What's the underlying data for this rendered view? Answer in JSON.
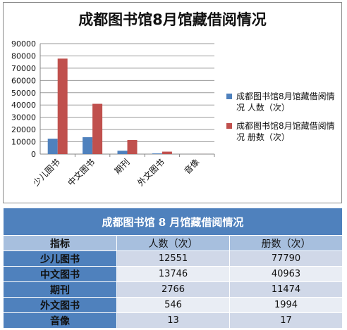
{
  "chart_data": {
    "type": "bar",
    "title": "成都图书馆8月馆藏借阅情况",
    "categories": [
      "少儿图书",
      "中文图书",
      "期刊",
      "外文图书",
      "音像"
    ],
    "series": [
      {
        "name": "成都图书馆8月馆藏借阅情况 人数（次）",
        "values": [
          12551,
          13746,
          2766,
          546,
          13
        ],
        "color": "#4f81bd"
      },
      {
        "name": "成都图书馆8月馆藏借阅情况 册数（次）",
        "values": [
          77790,
          40963,
          11474,
          1994,
          17
        ],
        "color": "#c0504d"
      }
    ],
    "ylim": [
      0,
      90000
    ],
    "yticks": [
      "0",
      "10000",
      "20000",
      "30000",
      "40000",
      "50000",
      "60000",
      "70000",
      "80000",
      "90000"
    ],
    "grid": true,
    "legend": "right",
    "xlabel": "",
    "ylabel": ""
  },
  "table": {
    "title": "成都图书馆 8 月馆藏借阅情况",
    "headers": [
      "指标",
      "人数（次）",
      "册数（次）"
    ],
    "rows": [
      {
        "name": "少儿图书",
        "people": "12551",
        "books": "77790"
      },
      {
        "name": "中文图书",
        "people": "13746",
        "books": "40963"
      },
      {
        "name": "期刊",
        "people": "2766",
        "books": "11474"
      },
      {
        "name": "外文图书",
        "people": "546",
        "books": "1994"
      },
      {
        "name": "音像",
        "people": "13",
        "books": "17"
      }
    ]
  },
  "colors": {
    "accent": "#4f81bd",
    "series2": "#c0504d",
    "header_fill": "#a7bfde",
    "row_odd": "#d0d8e8",
    "row_even": "#e9edf4"
  }
}
